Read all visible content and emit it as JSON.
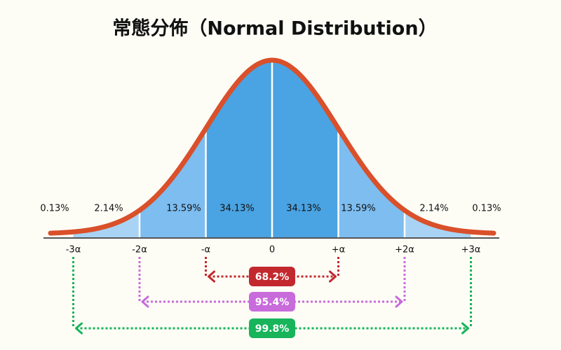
{
  "title": "常態分佈（Normal Distribution）",
  "regions": [
    "0.13%",
    "2.14%",
    "13.59%",
    "34.13%",
    "34.13%",
    "13.59%",
    "2.14%",
    "0.13%"
  ],
  "axis_labels": [
    "-3α",
    "-2α",
    "-α",
    "0",
    "+α",
    "+2α",
    "+3α"
  ],
  "ranges": [
    {
      "label": "68.2%",
      "color": "#c3282e"
    },
    {
      "label": "95.4%",
      "color": "#c86bdb"
    },
    {
      "label": "99.8%",
      "color": "#17b45a"
    }
  ]
}
